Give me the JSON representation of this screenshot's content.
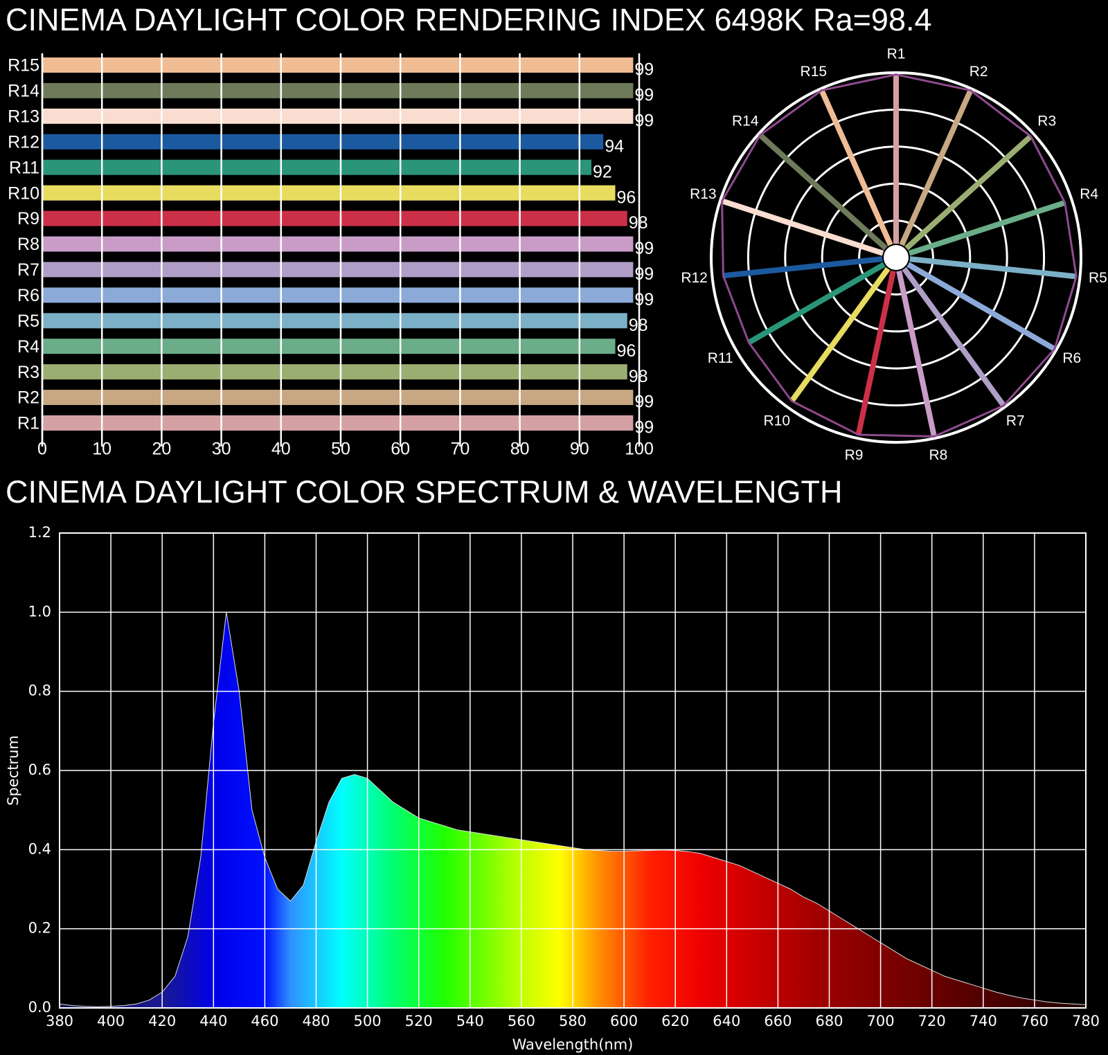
{
  "chart_data": [
    {
      "type": "hbar",
      "title": "CINEMA DAYLIGHT COLOR RENDERING INDEX 6498K  Ra=98.4",
      "categories": [
        "R1",
        "R2",
        "R3",
        "R4",
        "R5",
        "R6",
        "R7",
        "R8",
        "R9",
        "R10",
        "R11",
        "R12",
        "R13",
        "R14",
        "R15"
      ],
      "values": [
        99,
        99,
        98,
        96,
        98,
        99,
        99,
        99,
        98,
        96,
        92,
        94,
        99,
        99,
        99
      ],
      "colors": [
        "#d4a0a4",
        "#c7a882",
        "#9aae72",
        "#6aad88",
        "#7bb0c6",
        "#8caad8",
        "#b09ec8",
        "#c99cc8",
        "#cc3048",
        "#e8dc60",
        "#2a9578",
        "#1c5aa0",
        "#f8ddd0",
        "#6e7b5a",
        "#f0bc94"
      ],
      "xlim": [
        0,
        100
      ],
      "xticks": [
        0,
        10,
        20,
        30,
        40,
        50,
        60,
        70,
        80,
        90,
        100
      ],
      "grid": true
    },
    {
      "type": "radar",
      "categories": [
        "R1",
        "R2",
        "R3",
        "R4",
        "R5",
        "R6",
        "R7",
        "R8",
        "R9",
        "R10",
        "R11",
        "R12",
        "R13",
        "R14",
        "R15"
      ],
      "values": [
        99,
        99,
        98,
        96,
        98,
        99,
        99,
        99,
        98,
        96,
        92,
        94,
        99,
        99,
        99
      ],
      "colors": [
        "#d4a0a4",
        "#c7a882",
        "#9aae72",
        "#6aad88",
        "#7bb0c6",
        "#8caad8",
        "#b09ec8",
        "#c99cc8",
        "#cc3048",
        "#e8dc60",
        "#2a9578",
        "#1c5aa0",
        "#f8ddd0",
        "#6e7b5a",
        "#f0bc94"
      ],
      "outline_color": "#8e4a8e",
      "rlim": [
        0,
        100
      ]
    },
    {
      "type": "area",
      "title": "CINEMA DAYLIGHT COLOR SPECTRUM & WAVELENGTH",
      "x_label": "Wavelength(nm)",
      "y_label": "Spectrum",
      "x": [
        380,
        385,
        390,
        395,
        400,
        405,
        410,
        415,
        420,
        425,
        430,
        435,
        440,
        445,
        450,
        455,
        460,
        465,
        470,
        475,
        480,
        485,
        490,
        495,
        500,
        505,
        510,
        515,
        520,
        525,
        530,
        535,
        540,
        545,
        550,
        555,
        560,
        565,
        570,
        575,
        580,
        585,
        590,
        595,
        600,
        605,
        610,
        615,
        620,
        625,
        630,
        635,
        640,
        645,
        650,
        655,
        660,
        665,
        670,
        675,
        680,
        685,
        690,
        695,
        700,
        705,
        710,
        715,
        720,
        725,
        730,
        735,
        740,
        745,
        750,
        755,
        760,
        765,
        770,
        775,
        780
      ],
      "values": [
        0.01,
        0.006,
        0.004,
        0.003,
        0.004,
        0.006,
        0.01,
        0.02,
        0.04,
        0.08,
        0.18,
        0.38,
        0.72,
        1.0,
        0.8,
        0.5,
        0.38,
        0.3,
        0.27,
        0.31,
        0.42,
        0.52,
        0.58,
        0.59,
        0.58,
        0.55,
        0.52,
        0.5,
        0.48,
        0.47,
        0.46,
        0.45,
        0.445,
        0.44,
        0.435,
        0.43,
        0.425,
        0.42,
        0.415,
        0.41,
        0.405,
        0.4,
        0.398,
        0.396,
        0.396,
        0.397,
        0.398,
        0.399,
        0.398,
        0.395,
        0.39,
        0.38,
        0.37,
        0.36,
        0.345,
        0.33,
        0.315,
        0.3,
        0.28,
        0.265,
        0.245,
        0.225,
        0.205,
        0.185,
        0.165,
        0.145,
        0.125,
        0.11,
        0.095,
        0.08,
        0.07,
        0.06,
        0.05,
        0.04,
        0.032,
        0.025,
        0.02,
        0.015,
        0.012,
        0.01,
        0.008
      ],
      "xlim": [
        380,
        780
      ],
      "xticks": [
        380,
        400,
        420,
        440,
        460,
        480,
        500,
        520,
        540,
        560,
        580,
        600,
        620,
        640,
        660,
        680,
        700,
        720,
        740,
        760,
        780
      ],
      "ylim": [
        0,
        1.2
      ],
      "yticks": [
        {
          "value": 0,
          "label": "0.0"
        },
        0.2,
        0.4,
        0.6,
        0.8,
        {
          "value": 1.0,
          "label": "1.0"
        },
        1.2
      ],
      "grid": true
    }
  ]
}
